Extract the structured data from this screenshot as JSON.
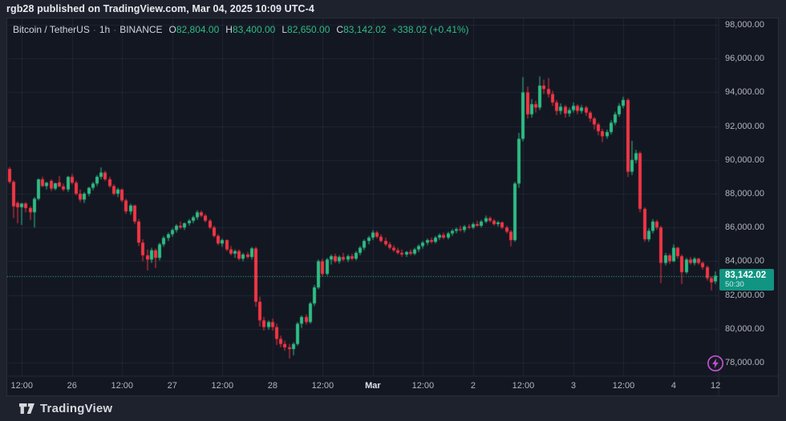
{
  "attribution": "rgb28 published on TradingView.com, Mar 04, 2025 10:09 UTC-4",
  "legend": {
    "symbol": "Bitcoin / TetherUS",
    "interval": "1h",
    "exchange": "BINANCE",
    "separator": "·",
    "open_label": "O",
    "open_value": "82,804.00",
    "high_label": "H",
    "high_value": "83,400.00",
    "low_label": "L",
    "low_value": "82,650.00",
    "close_label": "C",
    "close_value": "83,142.02",
    "change_text": "+338.02 (+0.41%)"
  },
  "price_badge": {
    "price": "83,142.02",
    "countdown": "50:30"
  },
  "footer": {
    "brand": "TradingView"
  },
  "colors": {
    "up": "#2ebd85",
    "down": "#f23645",
    "badge_bg": "#119482",
    "grid": "rgba(134,146,172,0.12)",
    "axis_border": "#2a2e39",
    "panel_bg": "#131722",
    "outer_bg": "#1e222d",
    "axis_text": "#b2b5be",
    "boost_purple": "#c44fd0"
  },
  "chart_data": {
    "type": "candlestick",
    "title": "Bitcoin / TetherUS · 1h · BINANCE",
    "current_price": 83142.02,
    "y_axis": {
      "top": 98000,
      "bottom": 78000,
      "tick_step": 2000,
      "ticks": [
        "98,000.00",
        "96,000.00",
        "94,000.00",
        "92,000.00",
        "90,000.00",
        "88,000.00",
        "86,000.00",
        "84,000.00",
        "82,000.00",
        "80,000.00",
        "78,000.00"
      ]
    },
    "x_ticks": [
      {
        "label": "12:00",
        "i": 3,
        "major": false
      },
      {
        "label": "26",
        "i": 15,
        "major": false
      },
      {
        "label": "12:00",
        "i": 27,
        "major": false
      },
      {
        "label": "27",
        "i": 39,
        "major": false
      },
      {
        "label": "12:00",
        "i": 51,
        "major": false
      },
      {
        "label": "28",
        "i": 63,
        "major": false
      },
      {
        "label": "12:00",
        "i": 75,
        "major": false
      },
      {
        "label": "Mar",
        "i": 87,
        "major": true
      },
      {
        "label": "12:00",
        "i": 99,
        "major": false
      },
      {
        "label": "2",
        "i": 111,
        "major": false
      },
      {
        "label": "12:00",
        "i": 123,
        "major": false
      },
      {
        "label": "3",
        "i": 135,
        "major": false
      },
      {
        "label": "12:00",
        "i": 147,
        "major": false
      },
      {
        "label": "4",
        "i": 159,
        "major": false
      },
      {
        "label": "12",
        "i": 169,
        "major": false
      }
    ],
    "candles": [
      [
        89470,
        89580,
        88600,
        88700
      ],
      [
        88700,
        88800,
        86550,
        87250
      ],
      [
        87450,
        87550,
        86250,
        87200
      ],
      [
        87200,
        87450,
        86150,
        87420
      ],
      [
        87420,
        87500,
        86900,
        87150
      ],
      [
        87150,
        87250,
        86450,
        86900
      ],
      [
        86900,
        87800,
        86000,
        87700
      ],
      [
        87700,
        88900,
        87600,
        88850
      ],
      [
        88850,
        89000,
        88400,
        88450
      ],
      [
        88450,
        88700,
        88250,
        88650
      ],
      [
        88760,
        88850,
        88150,
        88300
      ],
      [
        88300,
        88650,
        88200,
        88620
      ],
      [
        88670,
        89050,
        88380,
        88430
      ],
      [
        88430,
        88600,
        88150,
        88250
      ],
      [
        88250,
        89050,
        88100,
        89000
      ],
      [
        89000,
        89180,
        88550,
        88650
      ],
      [
        88650,
        88760,
        87900,
        88000
      ],
      [
        88000,
        88250,
        87500,
        87650
      ],
      [
        87650,
        88100,
        87450,
        88000
      ],
      [
        88000,
        88400,
        87850,
        88350
      ],
      [
        88350,
        88700,
        88200,
        88600
      ],
      [
        88600,
        89100,
        88450,
        89000
      ],
      [
        89000,
        89560,
        88850,
        89250
      ],
      [
        89250,
        89350,
        88750,
        88850
      ],
      [
        88850,
        89000,
        88350,
        88450
      ],
      [
        88450,
        88550,
        87900,
        88000
      ],
      [
        88000,
        88350,
        87800,
        88250
      ],
      [
        88250,
        88300,
        87500,
        87600
      ],
      [
        87600,
        87700,
        86800,
        86950
      ],
      [
        86950,
        87400,
        86750,
        87300
      ],
      [
        87300,
        87350,
        86200,
        86350
      ],
      [
        86350,
        86500,
        84900,
        85100
      ],
      [
        85100,
        85300,
        84000,
        84350
      ],
      [
        84350,
        84700,
        83450,
        84100
      ],
      [
        84100,
        84800,
        83900,
        84650
      ],
      [
        84650,
        84750,
        83600,
        84200
      ],
      [
        84200,
        85100,
        84050,
        85000
      ],
      [
        85000,
        85500,
        84850,
        85380
      ],
      [
        85380,
        85700,
        85200,
        85600
      ],
      [
        85600,
        85950,
        85450,
        85850
      ],
      [
        85850,
        86200,
        85700,
        86100
      ],
      [
        86100,
        86350,
        85900,
        86000
      ],
      [
        86000,
        86300,
        85850,
        86250
      ],
      [
        86250,
        86500,
        86100,
        86400
      ],
      [
        86400,
        86700,
        86250,
        86600
      ],
      [
        86600,
        87020,
        86450,
        86900
      ],
      [
        86900,
        87000,
        86600,
        86700
      ],
      [
        86700,
        86800,
        86300,
        86400
      ],
      [
        86400,
        86500,
        85900,
        86000
      ],
      [
        86000,
        86100,
        85400,
        85500
      ],
      [
        85500,
        85600,
        84950,
        85050
      ],
      [
        85050,
        85350,
        84850,
        85250
      ],
      [
        85250,
        85300,
        84600,
        84700
      ],
      [
        84700,
        84900,
        84350,
        84450
      ],
      [
        84450,
        84700,
        84200,
        84600
      ],
      [
        84600,
        84700,
        84050,
        84150
      ],
      [
        84150,
        84500,
        84000,
        84400
      ],
      [
        84400,
        84550,
        84150,
        84250
      ],
      [
        84250,
        84850,
        84100,
        84760
      ],
      [
        84760,
        84850,
        81300,
        81600
      ],
      [
        81600,
        81900,
        80130,
        80500
      ],
      [
        80500,
        80700,
        79900,
        80100
      ],
      [
        80100,
        80500,
        79950,
        80400
      ],
      [
        80400,
        80600,
        79900,
        80100
      ],
      [
        80100,
        80300,
        79040,
        79400
      ],
      [
        79400,
        79600,
        78900,
        79100
      ],
      [
        79100,
        79300,
        78700,
        78900
      ],
      [
        78900,
        79100,
        78240,
        78800
      ],
      [
        78800,
        79200,
        78430,
        79100
      ],
      [
        79100,
        80400,
        79000,
        80300
      ],
      [
        80300,
        80800,
        80050,
        80700
      ],
      [
        80700,
        80850,
        80250,
        80400
      ],
      [
        80400,
        81600,
        80300,
        81500
      ],
      [
        81500,
        82600,
        81350,
        82450
      ],
      [
        82450,
        84100,
        82350,
        84000
      ],
      [
        84000,
        84150,
        83100,
        83250
      ],
      [
        83250,
        84200,
        83150,
        84100
      ],
      [
        84100,
        84400,
        83800,
        84300
      ],
      [
        84300,
        84450,
        83900,
        84000
      ],
      [
        84000,
        84350,
        83850,
        84250
      ],
      [
        84250,
        84500,
        84000,
        84100
      ],
      [
        84100,
        84400,
        83950,
        84300
      ],
      [
        84300,
        84450,
        84050,
        84150
      ],
      [
        84150,
        84600,
        84050,
        84500
      ],
      [
        84500,
        84900,
        84350,
        84800
      ],
      [
        84800,
        85300,
        84650,
        85200
      ],
      [
        85200,
        85500,
        85000,
        85400
      ],
      [
        85400,
        85840,
        85250,
        85700
      ],
      [
        85700,
        85800,
        85350,
        85450
      ],
      [
        85450,
        85600,
        85100,
        85200
      ],
      [
        85200,
        85400,
        84900,
        85000
      ],
      [
        85000,
        85150,
        84700,
        84800
      ],
      [
        84800,
        84950,
        84550,
        84650
      ],
      [
        84650,
        84800,
        84400,
        84500
      ],
      [
        84500,
        84700,
        84260,
        84400
      ],
      [
        84400,
        84600,
        84260,
        84550
      ],
      [
        84550,
        84700,
        84350,
        84450
      ],
      [
        84450,
        84800,
        84350,
        84700
      ],
      [
        84700,
        85000,
        84550,
        84900
      ],
      [
        84900,
        85200,
        84750,
        85100
      ],
      [
        85100,
        85350,
        84950,
        85250
      ],
      [
        85250,
        85400,
        85050,
        85150
      ],
      [
        85150,
        85500,
        85050,
        85400
      ],
      [
        85400,
        85650,
        85250,
        85550
      ],
      [
        85550,
        85700,
        85300,
        85400
      ],
      [
        85400,
        85750,
        85300,
        85650
      ],
      [
        85650,
        85900,
        85500,
        85800
      ],
      [
        85800,
        86000,
        85650,
        85900
      ],
      [
        85900,
        86100,
        85750,
        85850
      ],
      [
        85850,
        86150,
        85700,
        86050
      ],
      [
        86050,
        86200,
        85900,
        86000
      ],
      [
        86000,
        86300,
        85900,
        86200
      ],
      [
        86200,
        86400,
        86050,
        86100
      ],
      [
        86100,
        86450,
        86000,
        86350
      ],
      [
        86350,
        86700,
        86250,
        86550
      ],
      [
        86550,
        86650,
        86300,
        86400
      ],
      [
        86400,
        86500,
        86100,
        86200
      ],
      [
        86200,
        86400,
        86050,
        86300
      ],
      [
        86300,
        86350,
        85900,
        86000
      ],
      [
        86000,
        86100,
        85650,
        85750
      ],
      [
        85750,
        85850,
        84880,
        85250
      ],
      [
        85250,
        88700,
        85150,
        88600
      ],
      [
        88600,
        91600,
        88350,
        91250
      ],
      [
        91250,
        94900,
        91100,
        94000
      ],
      [
        94000,
        94350,
        92450,
        92700
      ],
      [
        92700,
        93600,
        92500,
        93300
      ],
      [
        93300,
        93500,
        92800,
        93100
      ],
      [
        93100,
        94950,
        92950,
        94400
      ],
      [
        94400,
        94750,
        93900,
        94200
      ],
      [
        94200,
        94850,
        93700,
        93900
      ],
      [
        93900,
        94100,
        93200,
        93400
      ],
      [
        93400,
        93550,
        92650,
        92900
      ],
      [
        92900,
        93350,
        92700,
        93150
      ],
      [
        93150,
        93250,
        92500,
        92750
      ],
      [
        92750,
        93100,
        92550,
        92950
      ],
      [
        92950,
        93400,
        92800,
        93200
      ],
      [
        93200,
        93300,
        92700,
        92900
      ],
      [
        92900,
        93250,
        92750,
        93100
      ],
      [
        93100,
        93200,
        92600,
        92800
      ],
      [
        92800,
        92900,
        92250,
        92450
      ],
      [
        92450,
        92550,
        91800,
        92100
      ],
      [
        92100,
        92200,
        91450,
        91700
      ],
      [
        91700,
        91850,
        91050,
        91400
      ],
      [
        91400,
        91800,
        91250,
        91650
      ],
      [
        91650,
        92350,
        91500,
        92200
      ],
      [
        92200,
        92850,
        92050,
        92700
      ],
      [
        92700,
        93350,
        92550,
        93200
      ],
      [
        93200,
        93740,
        93050,
        93550
      ],
      [
        93550,
        93650,
        88990,
        89300
      ],
      [
        89300,
        91130,
        89100,
        90000
      ],
      [
        90000,
        90600,
        89800,
        90400
      ],
      [
        90400,
        90500,
        86900,
        87100
      ],
      [
        87100,
        87200,
        85150,
        85300
      ],
      [
        85300,
        85950,
        85150,
        85800
      ],
      [
        85800,
        86500,
        85650,
        86350
      ],
      [
        86350,
        86450,
        85850,
        86000
      ],
      [
        86000,
        86100,
        82700,
        83900
      ],
      [
        83900,
        84500,
        83750,
        84350
      ],
      [
        84350,
        84450,
        83850,
        84000
      ],
      [
        84000,
        85000,
        83950,
        84800
      ],
      [
        84800,
        84850,
        84150,
        84300
      ],
      [
        84300,
        84400,
        82650,
        83350
      ],
      [
        83350,
        84200,
        83250,
        84100
      ],
      [
        84100,
        84250,
        83800,
        83900
      ],
      [
        83900,
        84250,
        83750,
        84150
      ],
      [
        84150,
        84200,
        83800,
        83900
      ],
      [
        83900,
        83980,
        83500,
        83650
      ],
      [
        83650,
        83750,
        82850,
        83000
      ],
      [
        83000,
        83100,
        82270,
        82750
      ],
      [
        82804,
        83400,
        82650,
        83142
      ]
    ]
  }
}
